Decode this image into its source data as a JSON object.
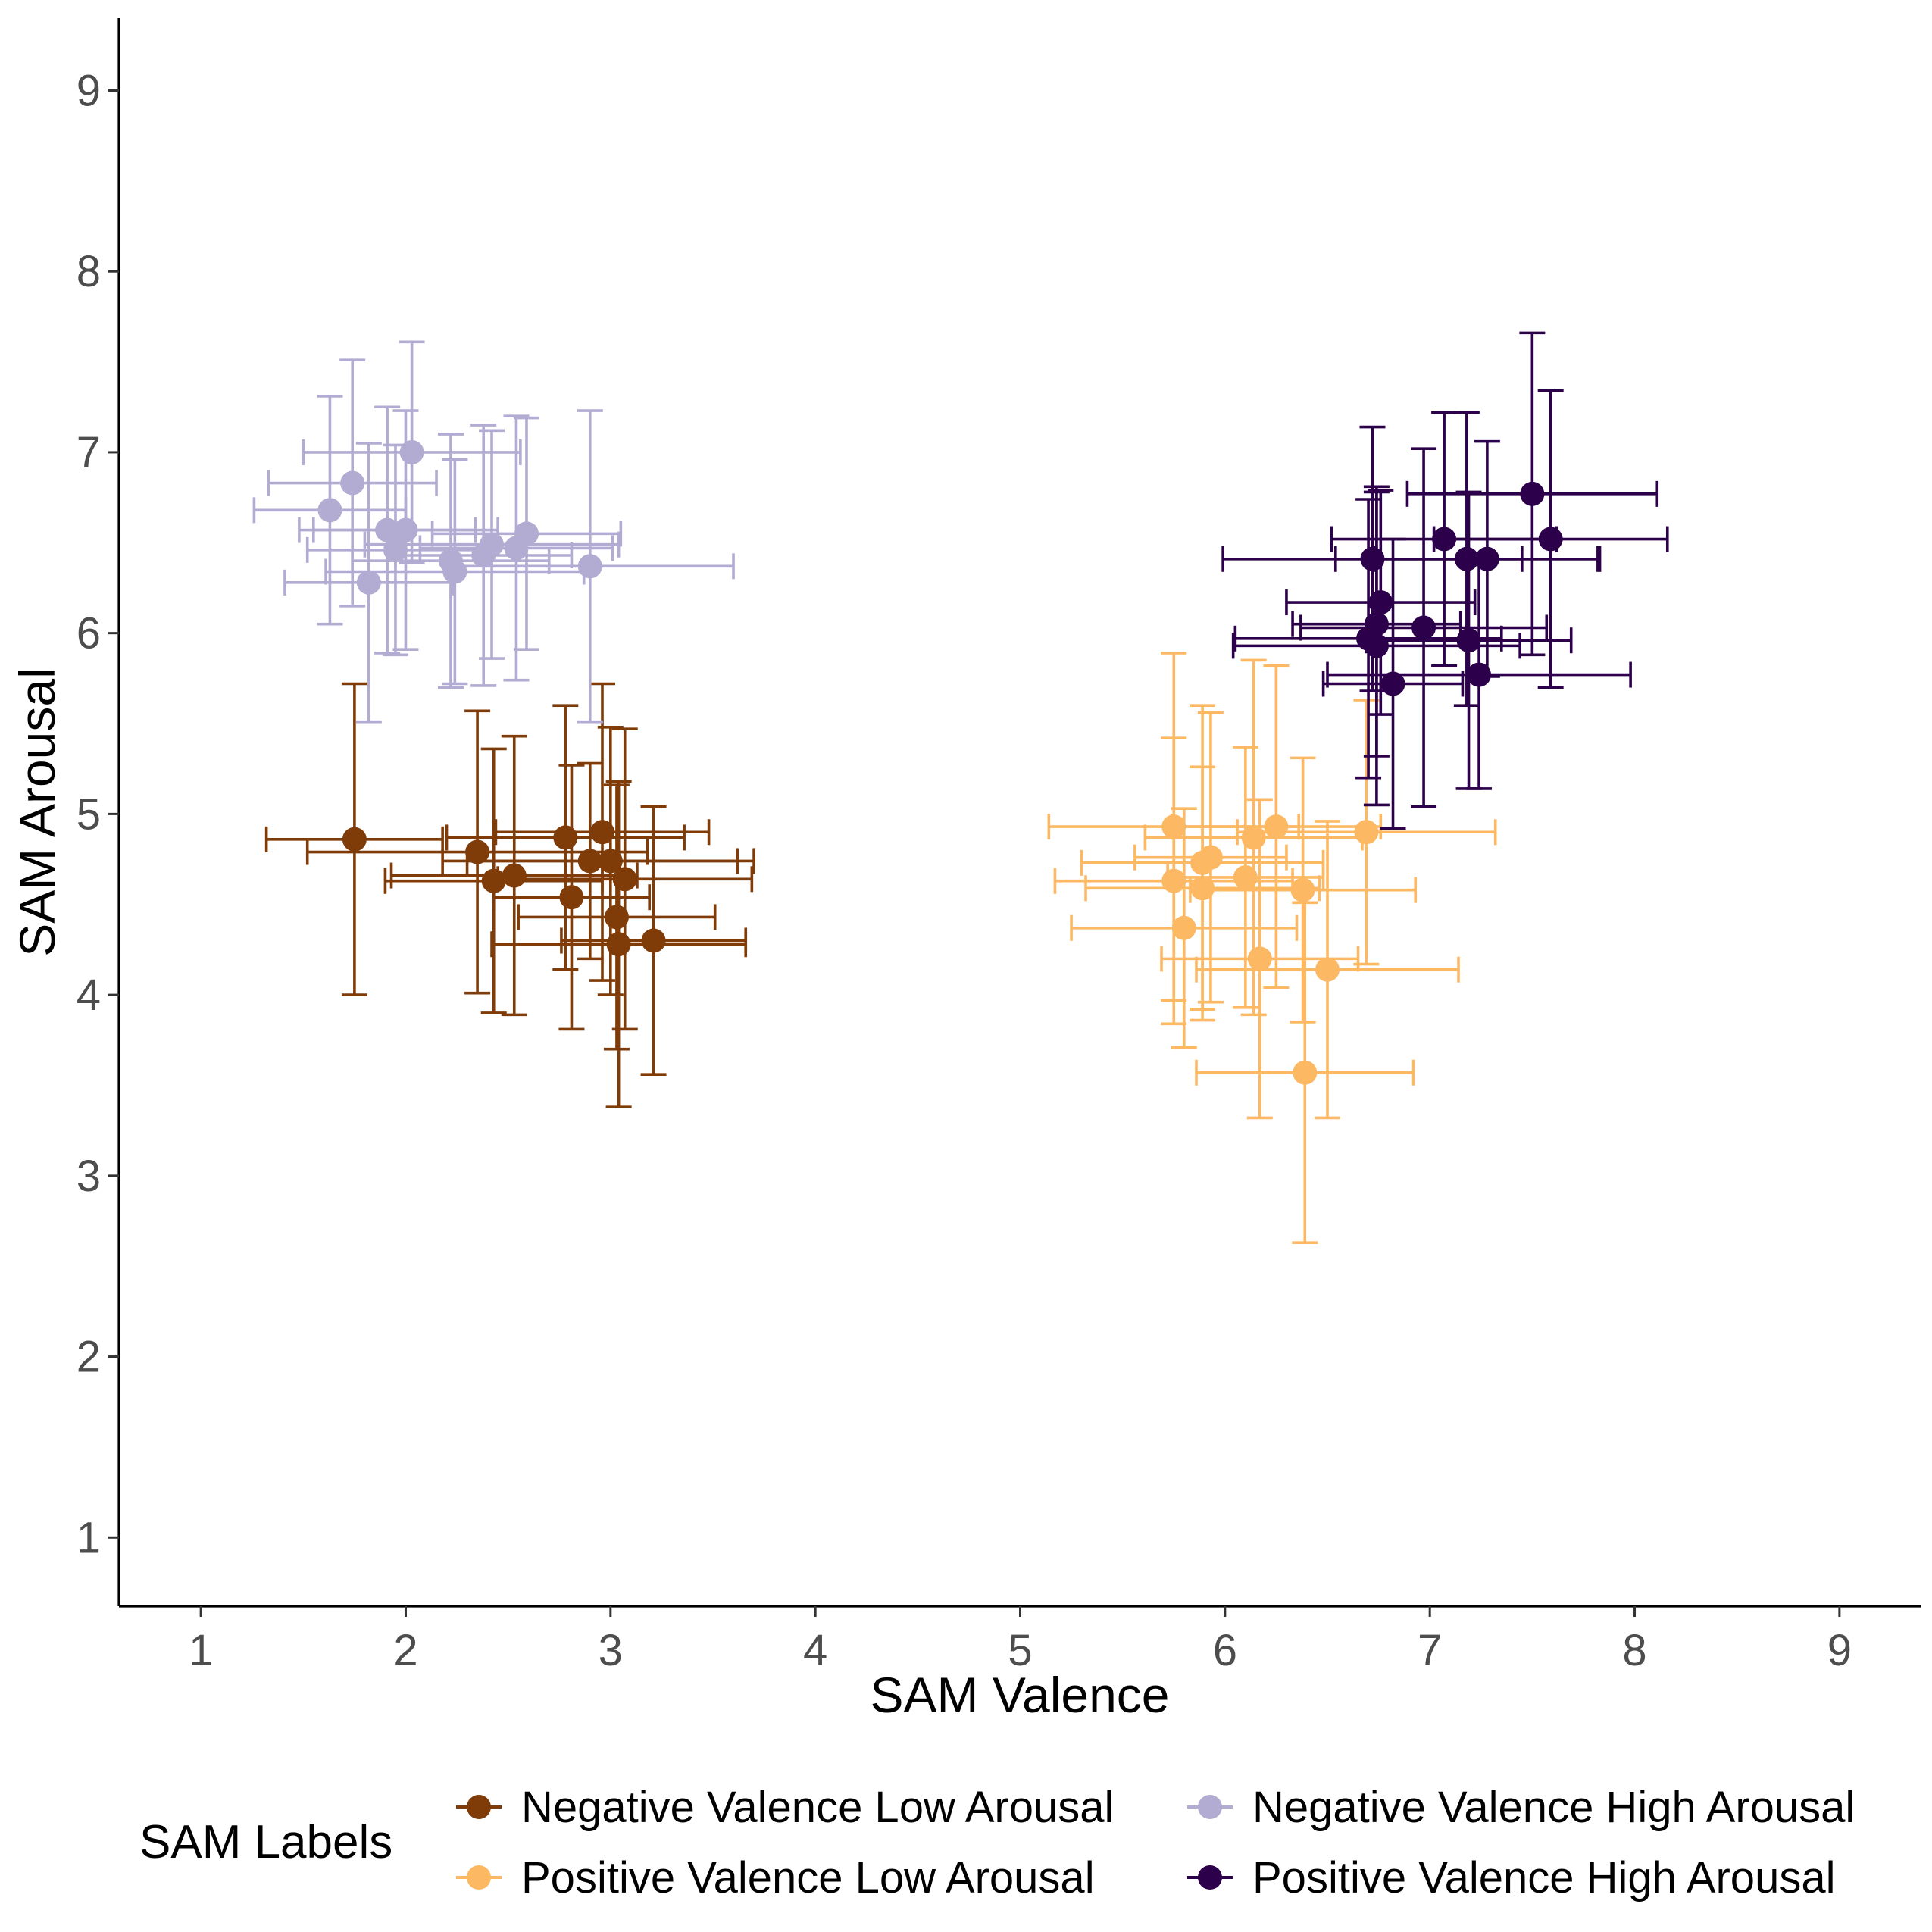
{
  "chart_data": {
    "type": "scatter",
    "title": "",
    "xlabel": "SAM Valence",
    "ylabel": "SAM Arousal",
    "xlim": [
      0.6,
      9.4
    ],
    "ylim": [
      0.62,
      9.4
    ],
    "xticks": [
      1,
      2,
      3,
      4,
      5,
      6,
      7,
      8,
      9
    ],
    "yticks": [
      1,
      2,
      3,
      4,
      5,
      6,
      7,
      8,
      9
    ],
    "grid": false,
    "legend": {
      "title": "SAM Labels",
      "position": "bottom"
    },
    "series": [
      {
        "name": "Negative Valence Low Arousal",
        "color": "#7f3b08",
        "points": [
          {
            "x": 1.75,
            "y": 4.86,
            "xerr": 0.43,
            "yerr": 0.86
          },
          {
            "x": 2.35,
            "y": 4.79,
            "xerr": 0.83,
            "yerr": 0.78
          },
          {
            "x": 2.43,
            "y": 4.63,
            "xerr": 0.53,
            "yerr": 0.73
          },
          {
            "x": 2.53,
            "y": 4.66,
            "xerr": 0.6,
            "yerr": 0.77
          },
          {
            "x": 2.78,
            "y": 4.87,
            "xerr": 0.58,
            "yerr": 0.73
          },
          {
            "x": 2.81,
            "y": 4.54,
            "xerr": 0.38,
            "yerr": 0.73
          },
          {
            "x": 2.9,
            "y": 4.74,
            "xerr": 0.72,
            "yerr": 0.54
          },
          {
            "x": 2.96,
            "y": 4.9,
            "xerr": 0.52,
            "yerr": 0.82
          },
          {
            "x": 3.0,
            "y": 4.74,
            "xerr": 0.7,
            "yerr": 0.74
          },
          {
            "x": 3.03,
            "y": 4.43,
            "xerr": 0.48,
            "yerr": 0.73
          },
          {
            "x": 3.04,
            "y": 4.28,
            "xerr": 0.62,
            "yerr": 0.9
          },
          {
            "x": 3.07,
            "y": 4.64,
            "xerr": 0.62,
            "yerr": 0.83
          },
          {
            "x": 3.21,
            "y": 4.3,
            "xerr": 0.45,
            "yerr": 0.74
          }
        ]
      },
      {
        "name": "Negative Valence High Arousal",
        "color": "#b2abd2",
        "points": [
          {
            "x": 1.63,
            "y": 6.68,
            "xerr": 0.37,
            "yerr": 0.63
          },
          {
            "x": 1.74,
            "y": 6.83,
            "xerr": 0.41,
            "yerr": 0.68
          },
          {
            "x": 1.82,
            "y": 6.28,
            "xerr": 0.41,
            "yerr": 0.77
          },
          {
            "x": 1.91,
            "y": 6.57,
            "xerr": 0.43,
            "yerr": 0.68
          },
          {
            "x": 1.95,
            "y": 6.46,
            "xerr": 0.43,
            "yerr": 0.58
          },
          {
            "x": 2.0,
            "y": 6.57,
            "xerr": 0.45,
            "yerr": 0.66
          },
          {
            "x": 2.03,
            "y": 7.0,
            "xerr": 0.53,
            "yerr": 0.61
          },
          {
            "x": 2.22,
            "y": 6.4,
            "xerr": 0.48,
            "yerr": 0.7
          },
          {
            "x": 2.24,
            "y": 6.34,
            "xerr": 0.63,
            "yerr": 0.62
          },
          {
            "x": 2.38,
            "y": 6.43,
            "xerr": 0.43,
            "yerr": 0.72
          },
          {
            "x": 2.42,
            "y": 6.49,
            "xerr": 0.62,
            "yerr": 0.63
          },
          {
            "x": 2.54,
            "y": 6.47,
            "xerr": 0.47,
            "yerr": 0.73
          },
          {
            "x": 2.59,
            "y": 6.55,
            "xerr": 0.46,
            "yerr": 0.64
          },
          {
            "x": 2.9,
            "y": 6.37,
            "xerr": 0.7,
            "yerr": 0.86
          }
        ]
      },
      {
        "name": "Positive Valence Low Arousal",
        "color": "#fdb863",
        "points": [
          {
            "x": 5.75,
            "y": 4.93,
            "xerr": 0.61,
            "yerr": 0.96
          },
          {
            "x": 5.75,
            "y": 4.63,
            "xerr": 0.58,
            "yerr": 0.79
          },
          {
            "x": 5.8,
            "y": 4.37,
            "xerr": 0.55,
            "yerr": 0.66
          },
          {
            "x": 5.89,
            "y": 4.73,
            "xerr": 0.59,
            "yerr": 0.87
          },
          {
            "x": 5.89,
            "y": 4.59,
            "xerr": 0.57,
            "yerr": 0.67
          },
          {
            "x": 5.93,
            "y": 4.76,
            "xerr": 0.37,
            "yerr": 0.8
          },
          {
            "x": 6.1,
            "y": 4.65,
            "xerr": 0.38,
            "yerr": 0.72
          },
          {
            "x": 6.14,
            "y": 4.87,
            "xerr": 0.53,
            "yerr": 0.98
          },
          {
            "x": 6.17,
            "y": 4.2,
            "xerr": 0.48,
            "yerr": 0.88
          },
          {
            "x": 6.25,
            "y": 4.93,
            "xerr": 0.51,
            "yerr": 0.89
          },
          {
            "x": 6.38,
            "y": 4.58,
            "xerr": 0.55,
            "yerr": 0.73
          },
          {
            "x": 6.39,
            "y": 3.57,
            "xerr": 0.53,
            "yerr": 0.94
          },
          {
            "x": 6.5,
            "y": 4.14,
            "xerr": 0.64,
            "yerr": 0.82
          },
          {
            "x": 6.69,
            "y": 4.9,
            "xerr": 0.63,
            "yerr": 0.73
          }
        ]
      },
      {
        "name": "Positive Valence High Arousal",
        "color": "#2d004b",
        "points": [
          {
            "x": 6.7,
            "y": 5.97,
            "xerr": 0.65,
            "yerr": 0.77
          },
          {
            "x": 6.72,
            "y": 6.41,
            "xerr": 0.73,
            "yerr": 0.73
          },
          {
            "x": 6.74,
            "y": 5.93,
            "xerr": 0.7,
            "yerr": 0.88
          },
          {
            "x": 6.74,
            "y": 6.05,
            "xerr": 0.41,
            "yerr": 0.73
          },
          {
            "x": 6.76,
            "y": 6.17,
            "xerr": 0.46,
            "yerr": 0.62
          },
          {
            "x": 6.82,
            "y": 5.72,
            "xerr": 0.34,
            "yerr": 0.8
          },
          {
            "x": 6.97,
            "y": 6.03,
            "xerr": 0.6,
            "yerr": 0.99
          },
          {
            "x": 7.07,
            "y": 6.52,
            "xerr": 0.55,
            "yerr": 0.7
          },
          {
            "x": 7.18,
            "y": 6.41,
            "xerr": 0.64,
            "yerr": 0.81
          },
          {
            "x": 7.19,
            "y": 5.96,
            "xerr": 0.5,
            "yerr": 0.82
          },
          {
            "x": 7.24,
            "y": 5.77,
            "xerr": 0.74,
            "yerr": 0.63
          },
          {
            "x": 7.28,
            "y": 6.41,
            "xerr": 0.55,
            "yerr": 0.65
          },
          {
            "x": 7.5,
            "y": 6.77,
            "xerr": 0.61,
            "yerr": 0.89
          },
          {
            "x": 7.59,
            "y": 6.52,
            "xerr": 0.57,
            "yerr": 0.82
          }
        ]
      }
    ]
  }
}
